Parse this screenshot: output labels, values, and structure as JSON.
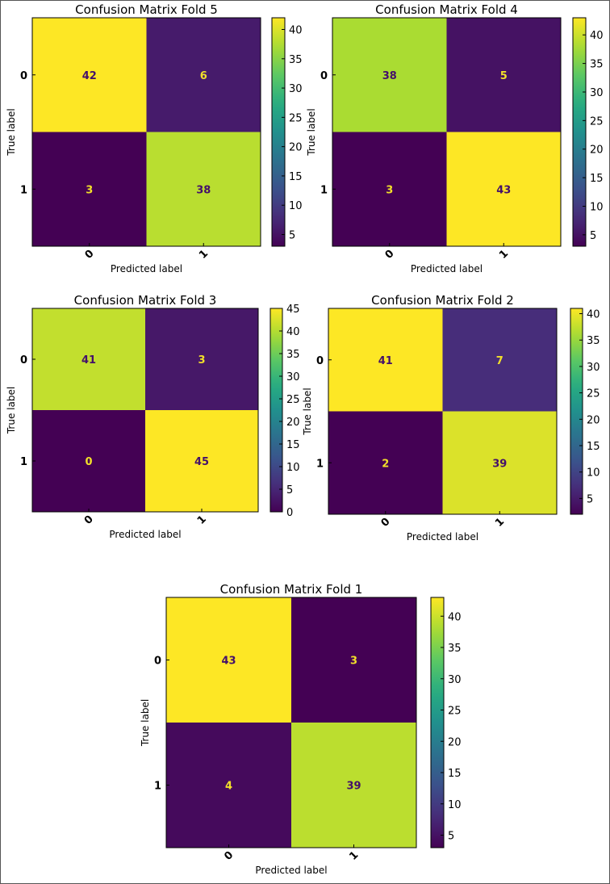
{
  "chart_data": [
    {
      "type": "heatmap",
      "title": "Confusion Matrix Fold 5",
      "xlabel": "Predicted label",
      "ylabel": "True label",
      "x_ticks": [
        "0",
        "1"
      ],
      "y_ticks": [
        "0",
        "1"
      ],
      "matrix": [
        [
          42,
          6
        ],
        [
          3,
          38
        ]
      ],
      "colormap": "viridis",
      "colorbar_range": [
        3,
        42
      ],
      "colorbar_ticks": [
        5,
        10,
        15,
        20,
        25,
        30,
        35,
        40
      ]
    },
    {
      "type": "heatmap",
      "title": "Confusion Matrix Fold 4",
      "xlabel": "Predicted label",
      "ylabel": "True label",
      "x_ticks": [
        "0",
        "1"
      ],
      "y_ticks": [
        "0",
        "1"
      ],
      "matrix": [
        [
          38,
          5
        ],
        [
          3,
          43
        ]
      ],
      "colormap": "viridis",
      "colorbar_range": [
        3,
        43
      ],
      "colorbar_ticks": [
        5,
        10,
        15,
        20,
        25,
        30,
        35,
        40
      ]
    },
    {
      "type": "heatmap",
      "title": "Confusion Matrix Fold 3",
      "xlabel": "Predicted label",
      "ylabel": "True label",
      "x_ticks": [
        "0",
        "1"
      ],
      "y_ticks": [
        "0",
        "1"
      ],
      "matrix": [
        [
          41,
          3
        ],
        [
          0,
          45
        ]
      ],
      "colormap": "viridis",
      "colorbar_range": [
        0,
        45
      ],
      "colorbar_ticks": [
        0,
        5,
        10,
        15,
        20,
        25,
        30,
        35,
        40,
        45
      ]
    },
    {
      "type": "heatmap",
      "title": "Confusion Matrix Fold 2",
      "xlabel": "Predicted label",
      "ylabel": "True label",
      "x_ticks": [
        "0",
        "1"
      ],
      "y_ticks": [
        "0",
        "1"
      ],
      "matrix": [
        [
          41,
          7
        ],
        [
          2,
          39
        ]
      ],
      "colormap": "viridis",
      "colorbar_range": [
        2,
        41
      ],
      "colorbar_ticks": [
        5,
        10,
        15,
        20,
        25,
        30,
        35,
        40
      ]
    },
    {
      "type": "heatmap",
      "title": "Confusion Matrix Fold 1",
      "xlabel": "Predicted label",
      "ylabel": "True label",
      "x_ticks": [
        "0",
        "1"
      ],
      "y_ticks": [
        "0",
        "1"
      ],
      "matrix": [
        [
          43,
          3
        ],
        [
          4,
          39
        ]
      ],
      "colormap": "viridis",
      "colorbar_range": [
        3,
        43
      ],
      "colorbar_ticks": [
        5,
        10,
        15,
        20,
        25,
        30,
        35,
        40
      ]
    }
  ]
}
